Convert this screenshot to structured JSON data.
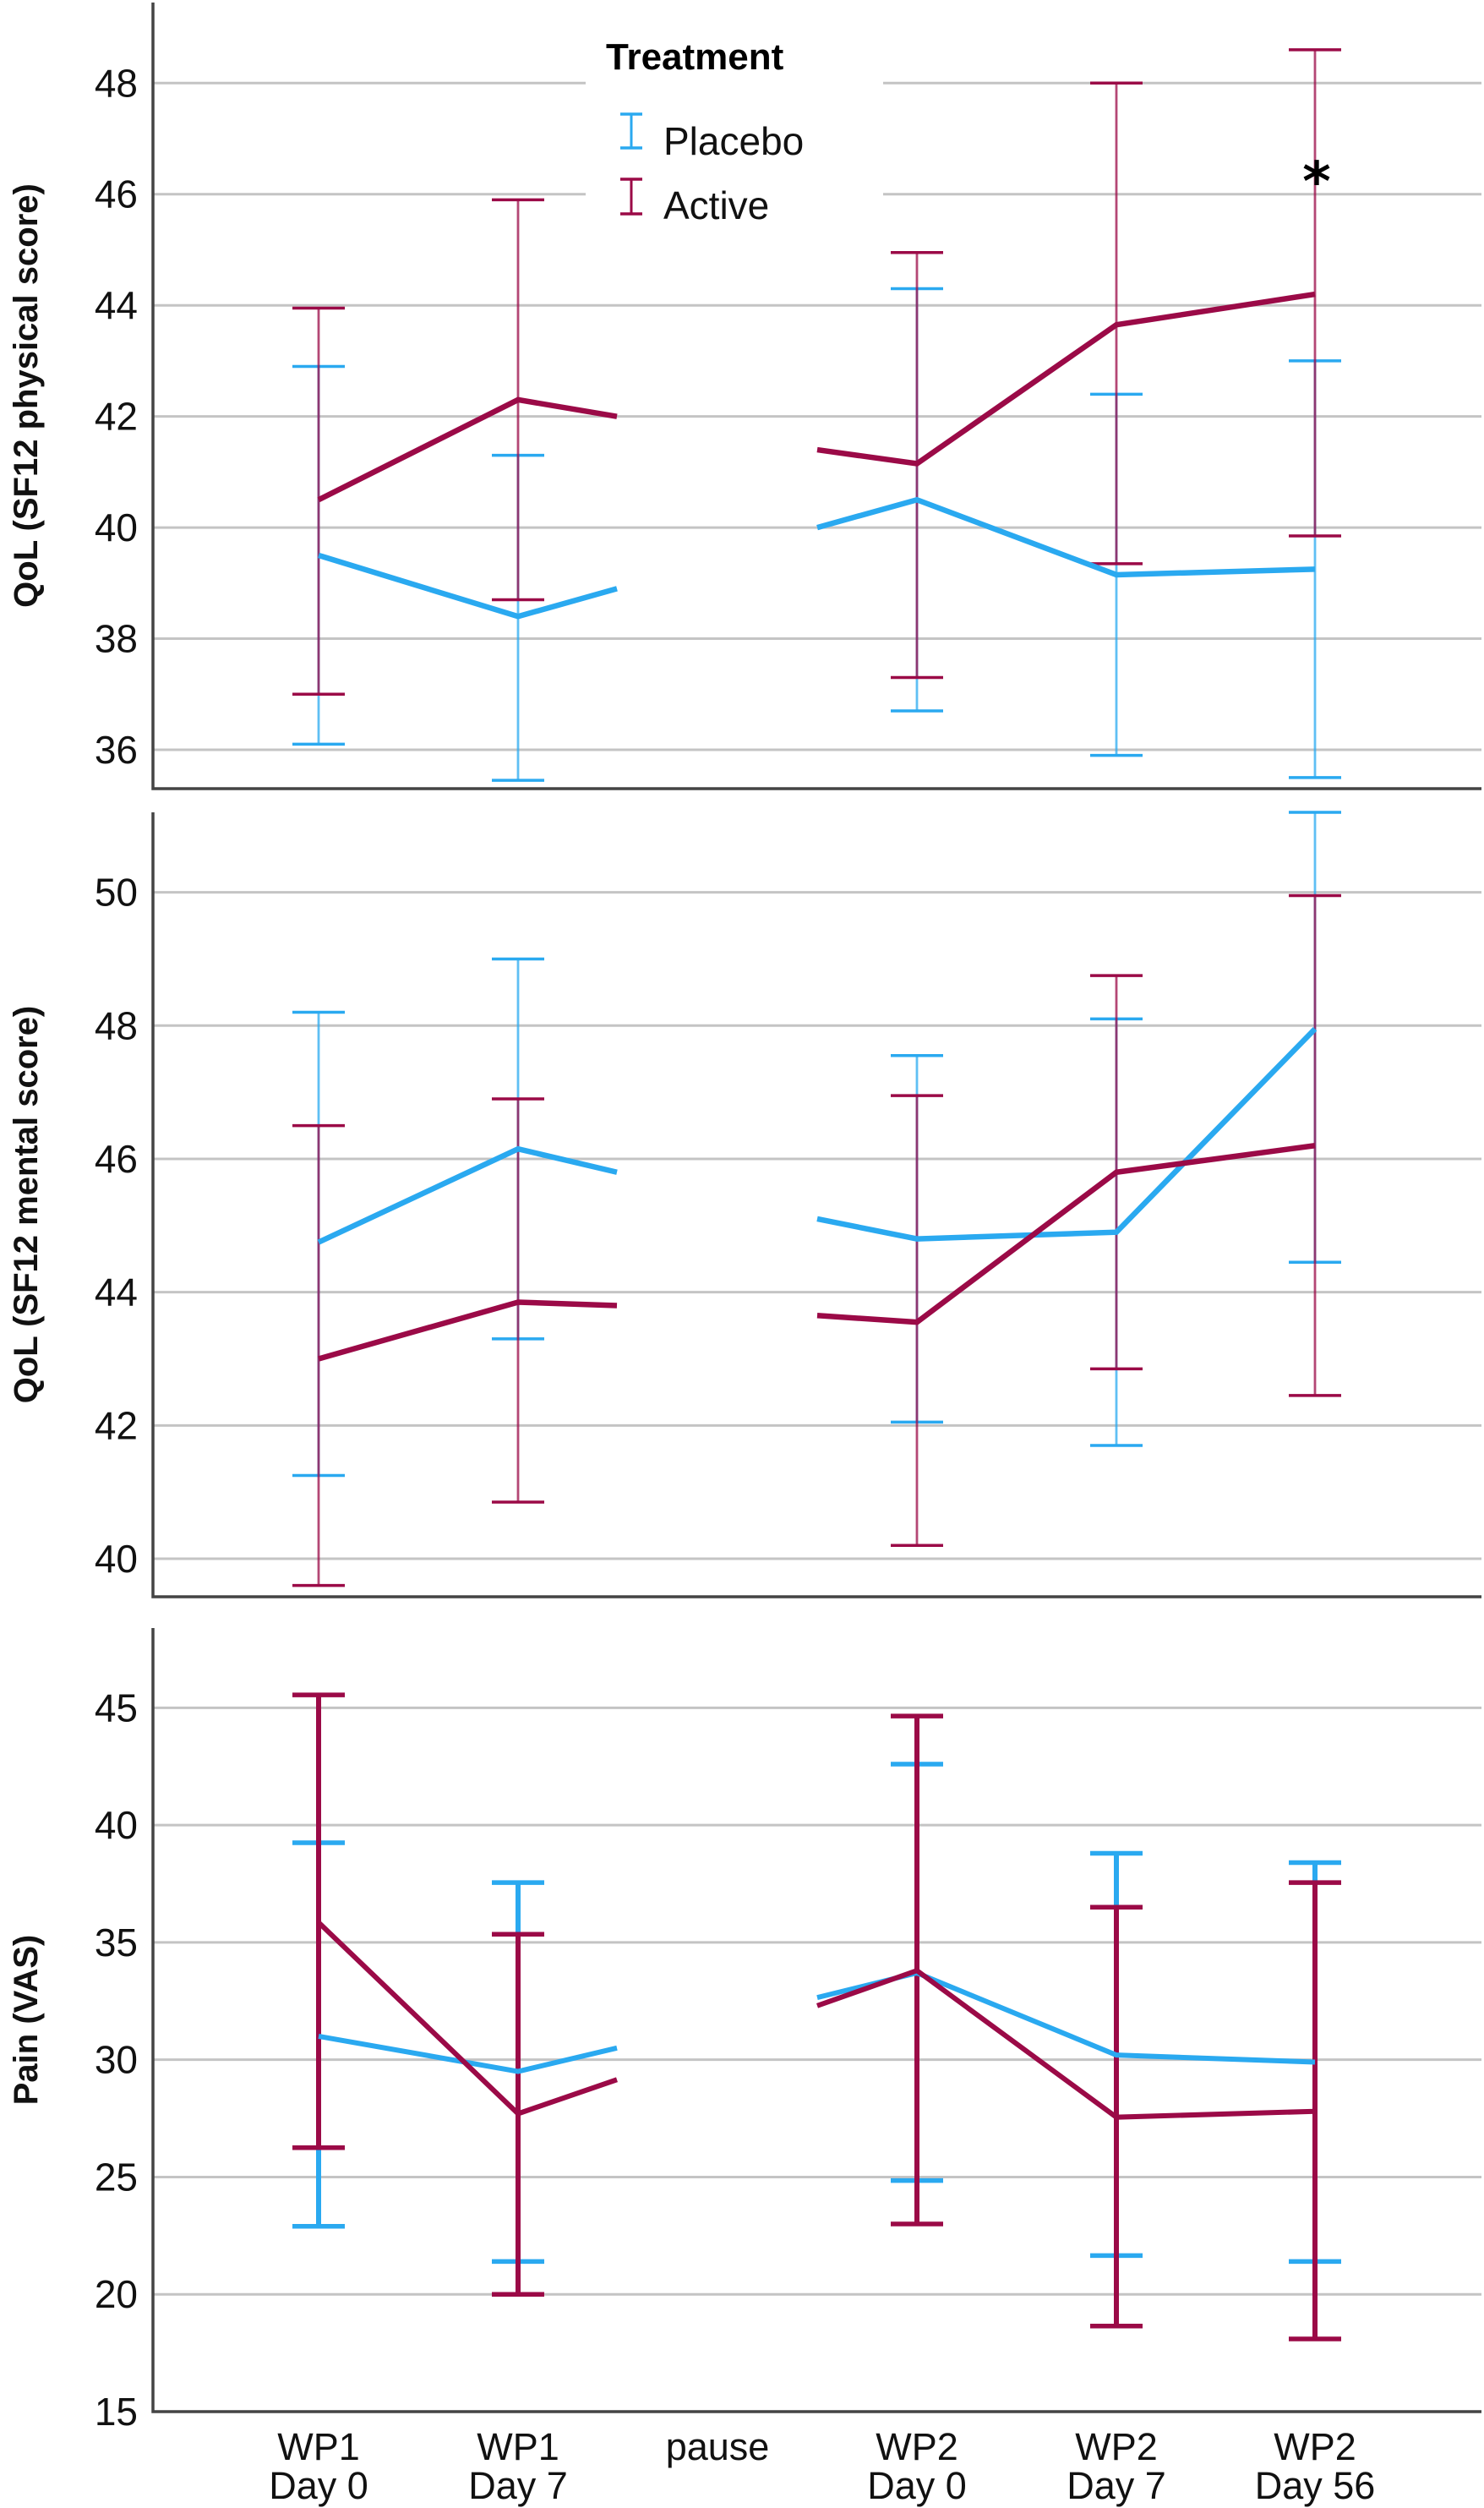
{
  "chart_data": {
    "type": "line",
    "layout": "three vertically stacked panels sharing x axis",
    "categories": [
      "WP1\nDay 0",
      "WP1\nDay 7",
      "pause",
      "WP2\nDay 0",
      "WP2\nDay 7",
      "WP2\nDay 56"
    ],
    "category_lines": [
      [
        "WP1",
        "Day 0"
      ],
      [
        "WP1",
        "Day 7"
      ],
      [
        "pause"
      ],
      [
        "WP2",
        "Day 0"
      ],
      [
        "WP2",
        "Day 7"
      ],
      [
        "WP2",
        "Day 56"
      ]
    ],
    "legend": {
      "title": "Treatment",
      "placement": "top-center (inside top panel)",
      "entries": [
        {
          "name": "Placebo",
          "color": "#2aa9f0"
        },
        {
          "name": "Active",
          "color": "#9b0a47"
        }
      ]
    },
    "series_colors": {
      "Placebo": "#2aa9f0",
      "Active": "#9b0a47"
    },
    "panels": [
      {
        "id": "physical",
        "ylabel": "QoL (SF12 physical score)",
        "ylim": [
          35.3,
          49.45
        ],
        "yticks": [
          36,
          38,
          40,
          42,
          44,
          46,
          48
        ],
        "grid": true,
        "annotations": [
          {
            "text": "*",
            "category": "WP2\nDay 56",
            "y": 46.5
          }
        ],
        "series": [
          {
            "name": "Placebo",
            "means": [
              39.5,
              38.4,
              null,
              40.5,
              39.15,
              39.25
            ],
            "upper": [
              42.9,
              41.3,
              null,
              44.3,
              42.4,
              43.0
            ],
            "lower": [
              36.1,
              35.45,
              null,
              36.7,
              35.9,
              35.5
            ],
            "wp1_segment_end": 38.9,
            "wp2_segment_start": 40.0
          },
          {
            "name": "Active",
            "means": [
              40.5,
              42.3,
              null,
              41.15,
              43.65,
              44.2
            ],
            "upper": [
              43.95,
              45.9,
              null,
              44.95,
              48.0,
              48.6
            ],
            "lower": [
              37.0,
              38.7,
              null,
              37.3,
              39.35,
              39.85
            ],
            "wp1_segment_end": 42.0,
            "wp2_segment_start": 41.4
          }
        ]
      },
      {
        "id": "mental",
        "ylabel": "QoL (SF12 mental score)",
        "ylim": [
          39.43,
          51.2
        ],
        "yticks": [
          40,
          42,
          44,
          46,
          48,
          50
        ],
        "grid": true,
        "annotations": [],
        "series": [
          {
            "name": "Placebo",
            "means": [
              44.75,
              46.15,
              null,
              44.8,
              44.9,
              47.95
            ],
            "upper": [
              48.2,
              49.0,
              null,
              47.55,
              48.1,
              51.2
            ],
            "lower": [
              41.25,
              43.3,
              null,
              42.05,
              41.7,
              44.45
            ],
            "wp1_segment_end": 45.8,
            "wp2_segment_start": 45.1
          },
          {
            "name": "Active",
            "means": [
              43.0,
              43.85,
              null,
              43.55,
              45.8,
              46.2
            ],
            "upper": [
              46.5,
              46.9,
              null,
              46.95,
              48.75,
              49.95
            ],
            "lower": [
              39.6,
              40.85,
              null,
              40.2,
              42.85,
              42.45
            ],
            "wp1_segment_end": 43.8,
            "wp2_segment_start": 43.65
          }
        ]
      },
      {
        "id": "pain",
        "ylabel": "Pain (VAS)",
        "ylim": [
          15,
          48.4
        ],
        "yticks": [
          15,
          20,
          25,
          30,
          35,
          40,
          45
        ],
        "grid": true,
        "annotations": [],
        "series": [
          {
            "name": "Placebo",
            "means": [
              31.0,
              29.5,
              null,
              33.7,
              30.2,
              29.9
            ],
            "upper": [
              39.25,
              37.55,
              null,
              42.6,
              38.8,
              38.4
            ],
            "lower": [
              22.9,
              21.4,
              null,
              24.85,
              21.65,
              21.4
            ],
            "wp1_segment_end": 30.5,
            "wp2_segment_start": 32.65
          },
          {
            "name": "Active",
            "means": [
              35.85,
              27.7,
              null,
              33.8,
              27.55,
              27.8
            ],
            "upper": [
              45.55,
              35.35,
              null,
              44.65,
              36.5,
              37.55
            ],
            "lower": [
              26.25,
              20.0,
              null,
              23.0,
              18.65,
              18.1
            ],
            "wp1_segment_end": 29.15,
            "wp2_segment_start": 32.3
          }
        ]
      }
    ],
    "xlabel": ""
  }
}
